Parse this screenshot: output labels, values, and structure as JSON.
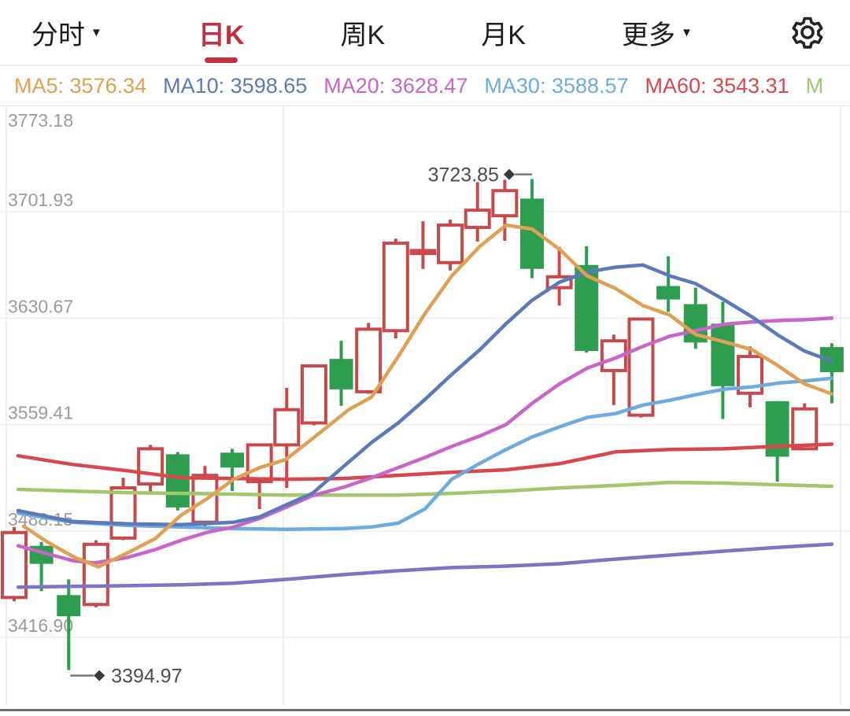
{
  "header": {
    "tabs": [
      {
        "name": "tab-intraday",
        "label": "分时",
        "caret": true,
        "active": false
      },
      {
        "name": "tab-daily-k",
        "label": "日K",
        "caret": false,
        "active": true
      },
      {
        "name": "tab-weekly-k",
        "label": "周K",
        "caret": false,
        "active": false
      },
      {
        "name": "tab-monthly-k",
        "label": "月K",
        "caret": false,
        "active": false
      },
      {
        "name": "tab-more",
        "label": "更多",
        "caret": true,
        "active": false
      }
    ],
    "accent_color": "#c5303e"
  },
  "legend": {
    "items": [
      {
        "label": "MA5:",
        "value": "3576.34",
        "color": "#dfa054"
      },
      {
        "label": "MA10:",
        "value": "3598.65",
        "color": "#5b7ab8"
      },
      {
        "label": "MA20:",
        "value": "3628.47",
        "color": "#c765c8"
      },
      {
        "label": "MA30:",
        "value": "3588.57",
        "color": "#6cabdd"
      },
      {
        "label": "MA60:",
        "value": "3543.31",
        "color": "#d5494d"
      },
      {
        "label": "M",
        "value": "",
        "color": "#a2c76b"
      }
    ]
  },
  "chart_data": {
    "type": "candlestick",
    "title": "",
    "ylabel": "",
    "grid": true,
    "y_ticks": [
      3773.18,
      3701.93,
      3630.67,
      3559.41,
      3488.15,
      3416.9
    ],
    "ylim": [
      3371.0,
      3773.18
    ],
    "colors": {
      "up": "#c6494c",
      "down": "#2f9d4f",
      "grid": "#ededed",
      "axis_text": "#9b9b9b",
      "annotation_text": "#4d4d4d"
    },
    "candles": [
      [
        3443.6,
        3490.8,
        3441.0,
        3487.1
      ],
      [
        3478.2,
        3480.8,
        3447.8,
        3466.1
      ],
      [
        3445.2,
        3455.7,
        3394.97,
        3431.0
      ],
      [
        3438.9,
        3481.9,
        3437.0,
        3479.2
      ],
      [
        3483.4,
        3523.8,
        3482.0,
        3517.0
      ],
      [
        3519.6,
        3545.8,
        3513.3,
        3543.2
      ],
      [
        3539.5,
        3541.0,
        3501.8,
        3503.9
      ],
      [
        3494.0,
        3531.7,
        3491.3,
        3525.4
      ],
      [
        3540.6,
        3543.2,
        3514.9,
        3530.6
      ],
      [
        3521.2,
        3546.3,
        3502.8,
        3545.8
      ],
      [
        3545.8,
        3584.0,
        3517.0,
        3569.4
      ],
      [
        3560.5,
        3599.8,
        3558.9,
        3598.7
      ],
      [
        3603.4,
        3615.5,
        3572.0,
        3583.0
      ],
      [
        3581.4,
        3627.5,
        3580.0,
        3623.3
      ],
      [
        3622.3,
        3684.0,
        3617.1,
        3680.9
      ],
      [
        3674.0,
        3695.6,
        3663.7,
        3676.0
      ],
      [
        3667.9,
        3696.7,
        3662.6,
        3693.0
      ],
      [
        3691.5,
        3721.8,
        3682.0,
        3703.0
      ],
      [
        3699.3,
        3723.4,
        3682.5,
        3716.1
      ],
      [
        3710.8,
        3723.85,
        3657.4,
        3663.7
      ],
      [
        3651.1,
        3678.4,
        3639.1,
        3658.4
      ],
      [
        3666.3,
        3678.9,
        3607.6,
        3608.7
      ],
      [
        3595.6,
        3619.7,
        3572.5,
        3615.5
      ],
      [
        3565.7,
        3631.0,
        3564.1,
        3630.1
      ],
      [
        3652.2,
        3672.1,
        3634.9,
        3643.2
      ],
      [
        3640.1,
        3651.1,
        3610.2,
        3614.4
      ],
      [
        3627.0,
        3641.7,
        3563.1,
        3585.1
      ],
      [
        3580.4,
        3611.8,
        3570.9,
        3605.0
      ],
      [
        3575.1,
        3575.1,
        3521.2,
        3537.9
      ],
      [
        3543.2,
        3573.6,
        3543.2,
        3569.9
      ],
      [
        3611.3,
        3613.9,
        3573.6,
        3594.5
      ]
    ],
    "ma_series": [
      {
        "name": "MA250",
        "color": "#7d74c6",
        "points": [
          [
            23,
            3450.5
          ],
          [
            92,
            3451.0
          ],
          [
            162,
            3451.5
          ],
          [
            230,
            3452.1
          ],
          [
            297,
            3453.1
          ],
          [
            363,
            3455.7
          ],
          [
            437,
            3458.9
          ],
          [
            506,
            3461.5
          ],
          [
            574,
            3463.6
          ],
          [
            643,
            3464.6
          ],
          [
            711,
            3466.2
          ],
          [
            782,
            3469.3
          ],
          [
            851,
            3472.0
          ],
          [
            919,
            3474.6
          ],
          [
            989,
            3477.2
          ],
          [
            1057,
            3479.3
          ]
        ]
      },
      {
        "name": "MA120",
        "color": "#a2c76b",
        "points": [
          [
            23,
            3516.0
          ],
          [
            92,
            3514.9
          ],
          [
            162,
            3513.8
          ],
          [
            230,
            3513.3
          ],
          [
            297,
            3512.8
          ],
          [
            363,
            3512.2
          ],
          [
            437,
            3512.2
          ],
          [
            506,
            3512.2
          ],
          [
            574,
            3513.3
          ],
          [
            643,
            3514.9
          ],
          [
            711,
            3517.0
          ],
          [
            782,
            3518.6
          ],
          [
            851,
            3520.7
          ],
          [
            919,
            3520.2
          ],
          [
            989,
            3519.1
          ],
          [
            1057,
            3518.1
          ]
        ]
      },
      {
        "name": "MA60",
        "color": "#d5494d",
        "points": [
          [
            23,
            3538.5
          ],
          [
            92,
            3532.7
          ],
          [
            162,
            3528.5
          ],
          [
            230,
            3523.8
          ],
          [
            297,
            3523.3
          ],
          [
            363,
            3522.8
          ],
          [
            437,
            3523.3
          ],
          [
            506,
            3525.4
          ],
          [
            574,
            3527.5
          ],
          [
            643,
            3529.1
          ],
          [
            711,
            3533.2
          ],
          [
            782,
            3541.1
          ],
          [
            851,
            3542.7
          ],
          [
            919,
            3543.2
          ],
          [
            989,
            3544.8
          ],
          [
            1057,
            3546.3
          ]
        ]
      },
      {
        "name": "MA30",
        "color": "#6cabdd",
        "points": [
          [
            23,
            3500.2
          ],
          [
            92,
            3494.0
          ],
          [
            162,
            3491.9
          ],
          [
            230,
            3490.8
          ],
          [
            297,
            3489.8
          ],
          [
            363,
            3489.2
          ],
          [
            437,
            3489.8
          ],
          [
            472,
            3490.8
          ],
          [
            506,
            3493.4
          ],
          [
            540,
            3502.9
          ],
          [
            574,
            3522.8
          ],
          [
            609,
            3533.2
          ],
          [
            643,
            3542.7
          ],
          [
            676,
            3551.1
          ],
          [
            711,
            3557.9
          ],
          [
            746,
            3564.2
          ],
          [
            782,
            3566.8
          ],
          [
            817,
            3572.5
          ],
          [
            851,
            3575.7
          ],
          [
            884,
            3579.4
          ],
          [
            919,
            3583.0
          ],
          [
            955,
            3584.6
          ],
          [
            989,
            3587.2
          ],
          [
            1022,
            3588.6
          ],
          [
            1057,
            3590.4
          ]
        ]
      },
      {
        "name": "MA20",
        "color": "#c765c8",
        "points": [
          [
            23,
            3478.2
          ],
          [
            92,
            3468.3
          ],
          [
            120,
            3466.7
          ],
          [
            162,
            3470.4
          ],
          [
            197,
            3475.6
          ],
          [
            230,
            3481.9
          ],
          [
            263,
            3487.2
          ],
          [
            297,
            3490.8
          ],
          [
            330,
            3496.6
          ],
          [
            363,
            3503.9
          ],
          [
            397,
            3511.8
          ],
          [
            437,
            3517.5
          ],
          [
            472,
            3523.8
          ],
          [
            506,
            3530.6
          ],
          [
            540,
            3537.4
          ],
          [
            574,
            3544.8
          ],
          [
            609,
            3551.6
          ],
          [
            643,
            3559.4
          ],
          [
            676,
            3573.6
          ],
          [
            711,
            3586.7
          ],
          [
            746,
            3597.2
          ],
          [
            782,
            3604.0
          ],
          [
            817,
            3611.8
          ],
          [
            851,
            3618.6
          ],
          [
            884,
            3622.3
          ],
          [
            919,
            3626.5
          ],
          [
            955,
            3628.1
          ],
          [
            989,
            3629.1
          ],
          [
            1022,
            3629.6
          ],
          [
            1057,
            3630.7
          ]
        ]
      },
      {
        "name": "MA10",
        "color": "#5b7ab8",
        "points": [
          [
            23,
            3501.8
          ],
          [
            92,
            3494.5
          ],
          [
            162,
            3492.9
          ],
          [
            230,
            3492.4
          ],
          [
            297,
            3494.0
          ],
          [
            330,
            3497.6
          ],
          [
            363,
            3505.5
          ],
          [
            397,
            3513.3
          ],
          [
            443,
            3534.3
          ],
          [
            472,
            3547.4
          ],
          [
            506,
            3560.5
          ],
          [
            540,
            3576.2
          ],
          [
            574,
            3593.0
          ],
          [
            609,
            3609.2
          ],
          [
            643,
            3627.0
          ],
          [
            676,
            3642.7
          ],
          [
            711,
            3654.8
          ],
          [
            746,
            3661.6
          ],
          [
            782,
            3664.8
          ],
          [
            817,
            3666.3
          ],
          [
            851,
            3659.0
          ],
          [
            884,
            3653.8
          ],
          [
            919,
            3643.3
          ],
          [
            955,
            3631.7
          ],
          [
            989,
            3619.2
          ],
          [
            1022,
            3608.7
          ],
          [
            1057,
            3601.9
          ]
        ]
      },
      {
        "name": "MA5",
        "color": "#dfa054",
        "points": [
          [
            30,
            3491.3
          ],
          [
            60,
            3480.8
          ],
          [
            95,
            3470.4
          ],
          [
            125,
            3464.1
          ],
          [
            162,
            3473.5
          ],
          [
            197,
            3482.9
          ],
          [
            230,
            3498.7
          ],
          [
            263,
            3509.7
          ],
          [
            297,
            3522.8
          ],
          [
            330,
            3530.6
          ],
          [
            363,
            3535.9
          ],
          [
            397,
            3550.0
          ],
          [
            443,
            3569.4
          ],
          [
            472,
            3577.8
          ],
          [
            506,
            3605.0
          ],
          [
            540,
            3633.8
          ],
          [
            574,
            3659.0
          ],
          [
            609,
            3678.4
          ],
          [
            643,
            3693.0
          ],
          [
            676,
            3690.4
          ],
          [
            711,
            3676.8
          ],
          [
            746,
            3659.0
          ],
          [
            782,
            3650.6
          ],
          [
            817,
            3639.1
          ],
          [
            851,
            3632.8
          ],
          [
            884,
            3619.7
          ],
          [
            919,
            3615.0
          ],
          [
            955,
            3609.7
          ],
          [
            989,
            3598.7
          ],
          [
            1022,
            3586.7
          ],
          [
            1057,
            3579.9
          ]
        ]
      }
    ],
    "annotations": {
      "high": {
        "candle_index": 19,
        "value": 3723.85,
        "label": "3723.85"
      },
      "low": {
        "candle_index": 2,
        "value": 3394.97,
        "label": "3394.97"
      }
    }
  }
}
